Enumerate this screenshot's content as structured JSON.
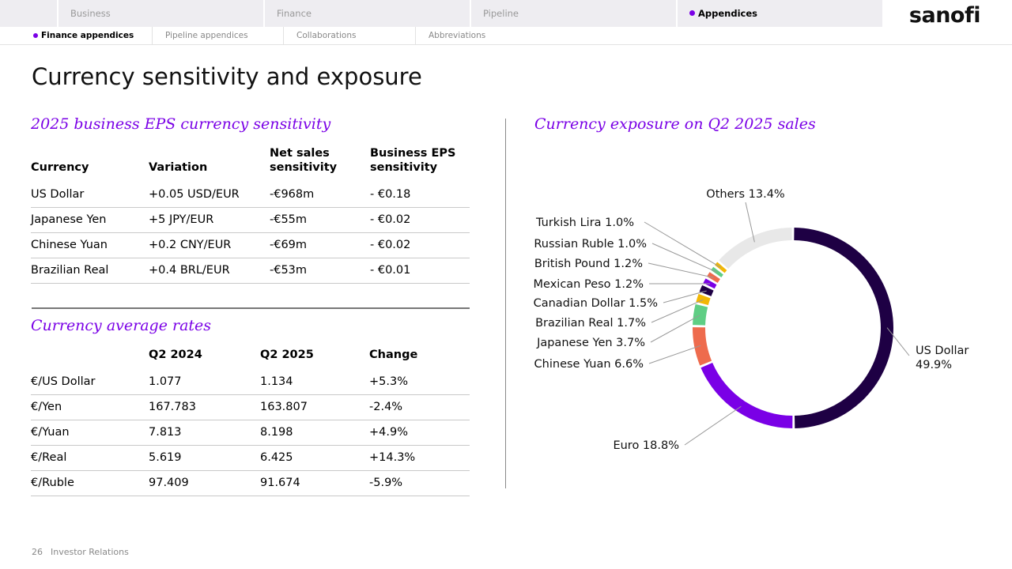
{
  "nav": {
    "tabs": [
      {
        "label": "Business",
        "active": false
      },
      {
        "label": "Finance",
        "active": false
      },
      {
        "label": "Pipeline",
        "active": false
      },
      {
        "label": "Appendices",
        "active": true
      }
    ],
    "subtabs": [
      {
        "label": "Finance appendices",
        "active": true
      },
      {
        "label": "Pipeline appendices",
        "active": false
      },
      {
        "label": "Collaborations",
        "active": false
      },
      {
        "label": "Abbreviations",
        "active": false
      }
    ],
    "logo": "sanofi"
  },
  "page_title": "Currency sensitivity and exposure",
  "sensitivity": {
    "title": "2025 business EPS currency sensitivity",
    "headers": [
      "Currency",
      "Variation",
      "Net sales sensitivity",
      "Business EPS sensitivity"
    ],
    "rows": [
      [
        "US Dollar",
        "+0.05 USD/EUR",
        "-€968m",
        "- €0.18"
      ],
      [
        "Japanese Yen",
        "+5 JPY/EUR",
        "-€55m",
        "- €0.02"
      ],
      [
        "Chinese Yuan",
        "+0.2 CNY/EUR",
        "-€69m",
        "- €0.02"
      ],
      [
        "Brazilian Real",
        "+0.4 BRL/EUR",
        "-€53m",
        "- €0.01"
      ]
    ]
  },
  "rates": {
    "title": "Currency average rates",
    "headers": [
      "",
      "Q2 2024",
      "Q2 2025",
      "Change"
    ],
    "rows": [
      [
        "€/US Dollar",
        "1.077",
        "1.134",
        "+5.3%"
      ],
      [
        "€/Yen",
        "167.783",
        "163.807",
        "-2.4%"
      ],
      [
        "€/Yuan",
        "7.813",
        "8.198",
        "+4.9%"
      ],
      [
        "€/Real",
        "5.619",
        "6.425",
        "+14.3%"
      ],
      [
        "€/Ruble",
        "97.409",
        "91.674",
        "-5.9%"
      ]
    ]
  },
  "chart_data": {
    "type": "pie",
    "title": "Currency exposure on Q2 2025 sales",
    "slices": [
      {
        "label": "US Dollar",
        "value": 49.9,
        "display": "49.9%",
        "color": "#1e0044"
      },
      {
        "label": "Euro",
        "value": 18.8,
        "display": "18.8%",
        "color": "#7a00e6"
      },
      {
        "label": "Chinese Yuan",
        "value": 6.6,
        "display": "6.6%",
        "color": "#ee6b4d"
      },
      {
        "label": "Japanese Yen",
        "value": 3.7,
        "display": "3.7%",
        "color": "#5fce84"
      },
      {
        "label": "Brazilian Real",
        "value": 1.7,
        "display": "1.7%",
        "color": "#f2b705"
      },
      {
        "label": "Canadian Dollar",
        "value": 1.5,
        "display": "1.5%",
        "color": "#1e0044"
      },
      {
        "label": "Mexican Peso",
        "value": 1.2,
        "display": "1.2%",
        "color": "#7a00e6"
      },
      {
        "label": "British Pound",
        "value": 1.2,
        "display": "1.2%",
        "color": "#ee6b4d"
      },
      {
        "label": "Russian Ruble",
        "value": 1.0,
        "display": "1.0%",
        "color": "#5fce84"
      },
      {
        "label": "Turkish Lira",
        "value": 1.0,
        "display": "1.0%",
        "color": "#f2b705"
      },
      {
        "label": "Others",
        "value": 13.4,
        "display": "13.4%",
        "color": "#e8e8e8"
      }
    ]
  },
  "footer": {
    "page_number": "26",
    "section": "Investor Relations"
  }
}
